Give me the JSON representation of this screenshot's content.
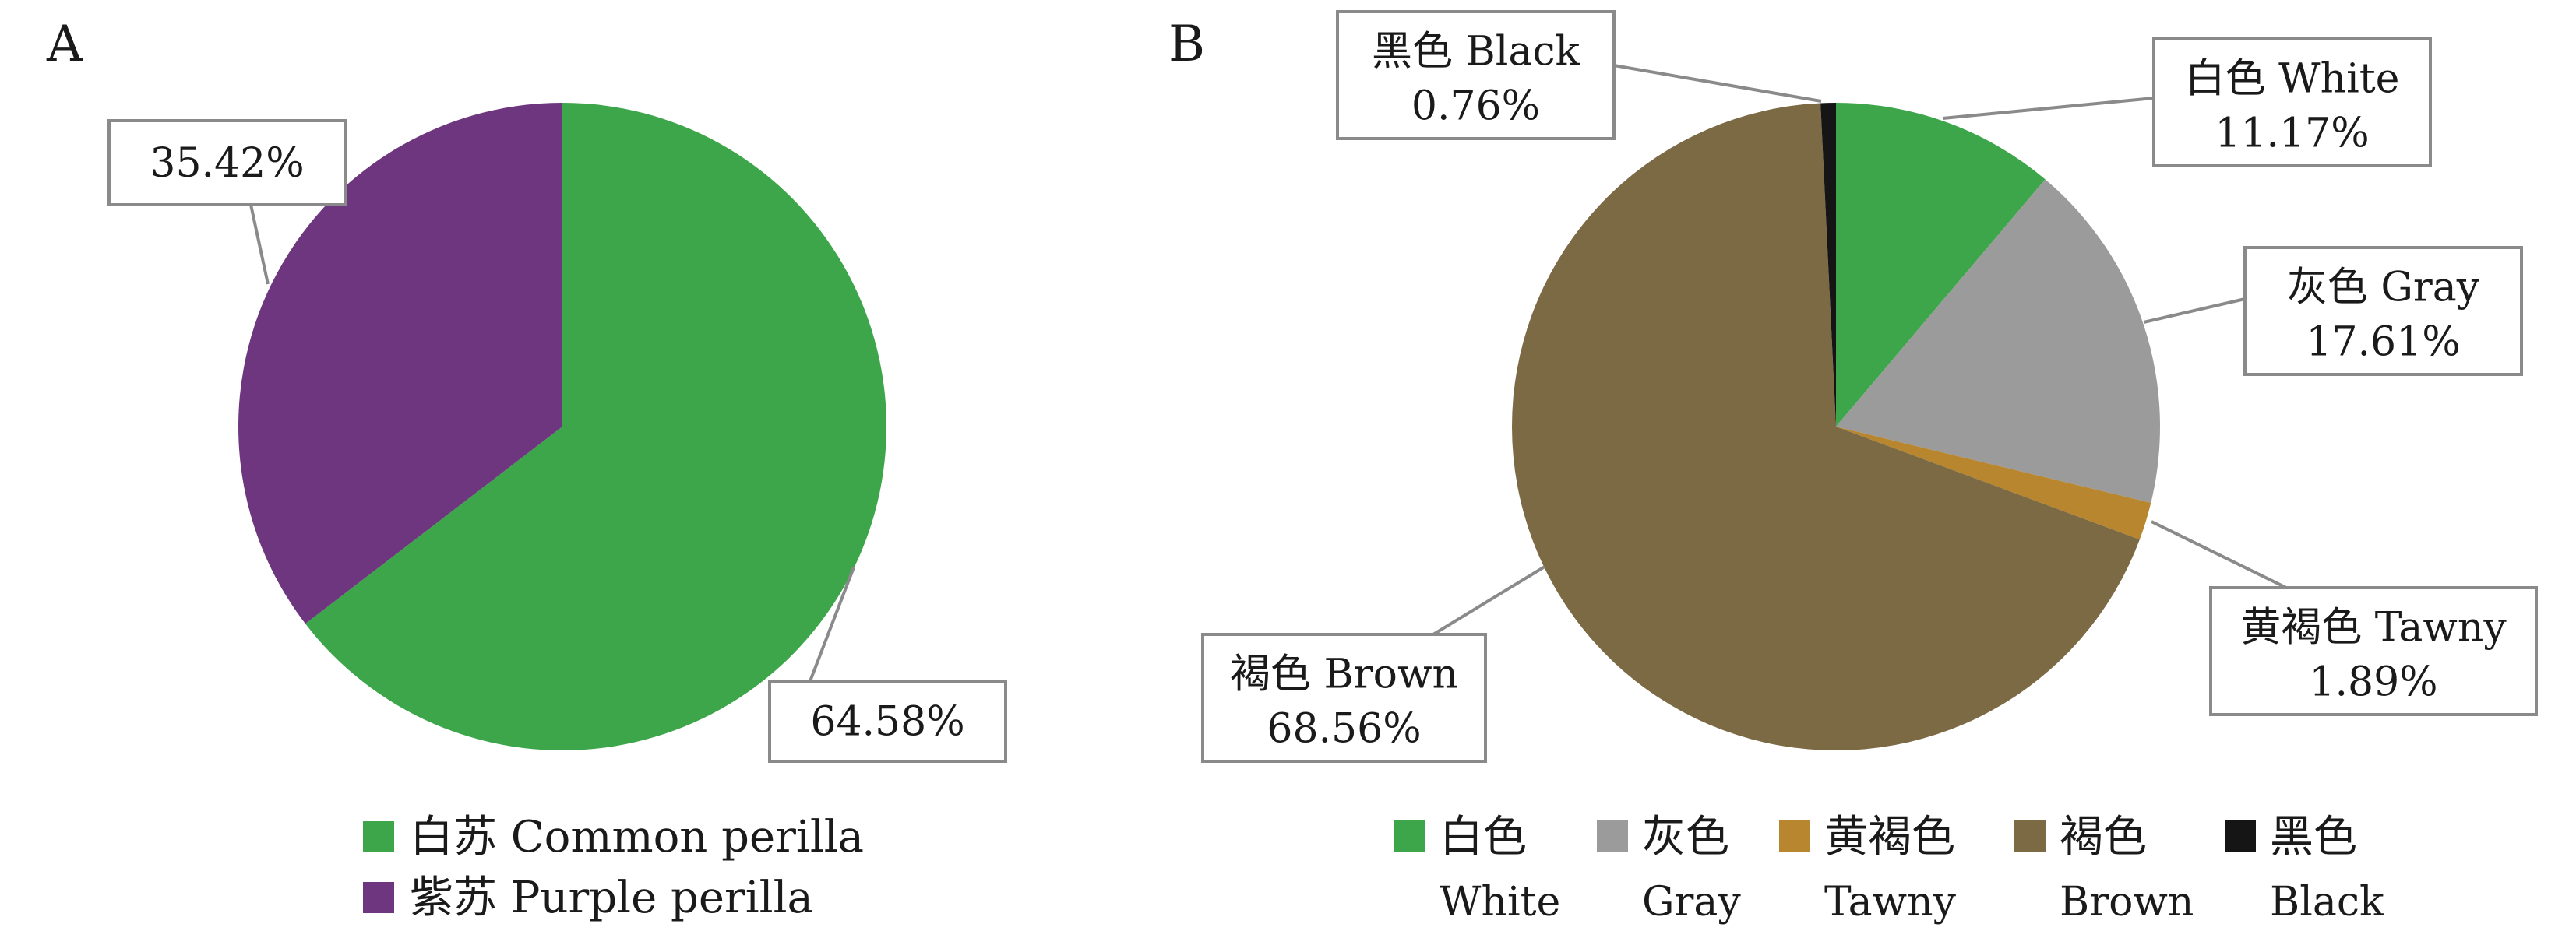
{
  "chart_data": [
    {
      "type": "pie",
      "panel_label": "A",
      "categories": [
        "白苏 Common perilla",
        "紫苏 Purple perilla"
      ],
      "values": [
        64.58,
        35.42
      ],
      "data_labels": [
        "64.58%",
        "35.42%"
      ],
      "colors": [
        "#3da64a",
        "#6e367e"
      ],
      "legend": {
        "placement": "bottom",
        "items": [
          "白苏 Common perilla",
          "紫苏 Purple perilla"
        ]
      }
    },
    {
      "type": "pie",
      "panel_label": "B",
      "categories": [
        "白色 White",
        "灰色 Gray",
        "黄褐色 Tawny",
        "褐色 Brown",
        "黑色 Black"
      ],
      "values": [
        11.17,
        17.61,
        1.89,
        68.56,
        0.76
      ],
      "data_labels": [
        {
          "name": "白色 White",
          "value": "11.17%"
        },
        {
          "name": "灰色 Gray",
          "value": "17.61%"
        },
        {
          "name": "黄褐色 Tawny",
          "value": "1.89%"
        },
        {
          "name": "褐色 Brown",
          "value": "68.56%"
        },
        {
          "name": "黑色 Black",
          "value": "0.76%"
        }
      ],
      "colors": [
        "#3da64a",
        "#9b9b9b",
        "#b8862f",
        "#7c6a45",
        "#151515"
      ],
      "legend": {
        "placement": "bottom",
        "items": [
          {
            "cn": "白色",
            "en": "White"
          },
          {
            "cn": "灰色",
            "en": "Gray"
          },
          {
            "cn": "黄褐色",
            "en": "Tawny"
          },
          {
            "cn": "褐色",
            "en": "Brown"
          },
          {
            "cn": "黑色",
            "en": "Black"
          }
        ]
      }
    }
  ]
}
